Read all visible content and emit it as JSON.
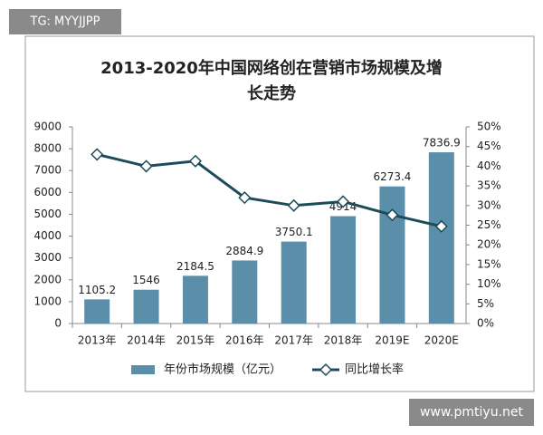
{
  "overlays": {
    "top_left": "TG: MYYJJPP",
    "bottom_right": "www.pmtiyu.net"
  },
  "chart_data": {
    "type": "bar",
    "title": "2013-2020年中国网络创在营销市场规模及增",
    "title_line2": "长走势",
    "categories": [
      "2013年",
      "2014年",
      "2015年",
      "2016年",
      "2017年",
      "2018年",
      "2019E",
      "2020E"
    ],
    "series": [
      {
        "name": "年份市场规模（亿元）",
        "type": "bar",
        "color": "#5b8ea8",
        "values": [
          1105.2,
          1546,
          2184.5,
          2884.9,
          3750.1,
          4914,
          6273.4,
          7836.9
        ]
      },
      {
        "name": "同比增长率",
        "type": "line",
        "axis": "y2",
        "color": "#1d4b5b",
        "values": [
          43,
          40,
          41.3,
          32,
          30,
          31,
          27.6,
          24.7
        ]
      }
    ],
    "ylim": [
      0,
      9000
    ],
    "yticks": [
      0,
      1000,
      2000,
      3000,
      4000,
      5000,
      6000,
      7000,
      8000,
      9000
    ],
    "y2lim": [
      0,
      50
    ],
    "y2ticks": [
      {
        "value": 0,
        "label": "0%"
      },
      {
        "value": 5,
        "label": "5%"
      },
      {
        "value": 10,
        "label": "10%"
      },
      {
        "value": 15,
        "label": "15%"
      },
      {
        "value": 20,
        "label": "20%"
      },
      {
        "value": 25,
        "label": "25%"
      },
      {
        "value": 30,
        "label": "30%"
      },
      {
        "value": 35,
        "label": "35%"
      },
      {
        "value": 40,
        "label": "40%"
      },
      {
        "value": 45,
        "label": "45%"
      },
      {
        "value": 50,
        "label": "50%"
      }
    ],
    "legend": "bottom"
  }
}
